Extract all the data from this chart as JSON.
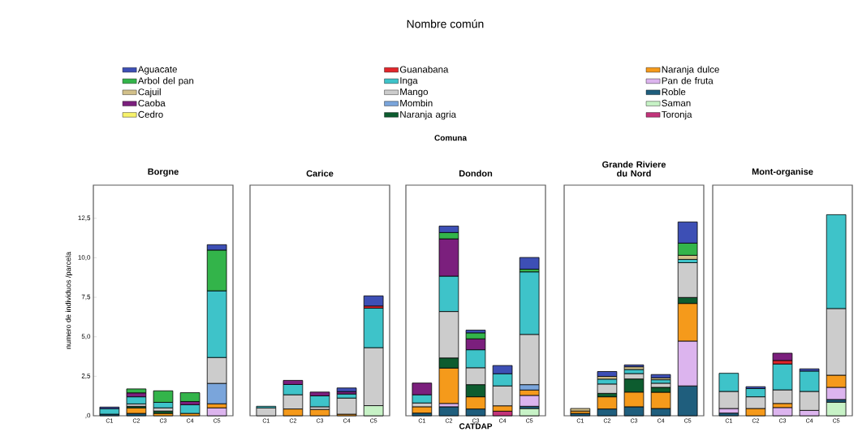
{
  "chart_data": [
    {
      "type": "bar",
      "stacked": true,
      "title": "Borgne",
      "legend_title": "Nombre común",
      "ylabel": "numero de individuos /parcela",
      "legend": "top",
      "categories": [
        "C1",
        "C2",
        "C3",
        "C4",
        "C5"
      ],
      "ylim": [
        0,
        14.6
      ],
      "yticks": [
        {
          "value": 0,
          "label": ",0"
        },
        {
          "value": 2.5,
          "label": "2,5"
        },
        {
          "value": 5,
          "label": "5,0"
        },
        {
          "value": 7.5,
          "label": "7,5"
        },
        {
          "value": 10,
          "label": "10,0"
        },
        {
          "value": 12.5,
          "label": "12,5"
        }
      ],
      "series": [
        {
          "name": "Toronja",
          "color": "#c2347a",
          "values": [
            null,
            null,
            null,
            null,
            null
          ]
        },
        {
          "name": "Saman",
          "color": "#c7f2c6",
          "values": [
            null,
            null,
            null,
            null,
            null
          ]
        },
        {
          "name": "Roble",
          "color": "#1f5e7d",
          "values": [
            0.1,
            0.15,
            null,
            null,
            null
          ]
        },
        {
          "name": "Pan de fruta",
          "color": "#dcb4ee",
          "values": [
            null,
            null,
            null,
            null,
            0.5
          ]
        },
        {
          "name": "Naranja dulce",
          "color": "#f59a1b",
          "values": [
            null,
            0.35,
            0.15,
            0.15,
            0.26
          ]
        },
        {
          "name": "Naranja agria",
          "color": "#0d5c2f",
          "values": [
            null,
            0.1,
            0.15,
            null,
            null
          ]
        },
        {
          "name": "Mombin",
          "color": "#7aa5db",
          "values": [
            null,
            null,
            null,
            null,
            1.29
          ]
        },
        {
          "name": "Mango",
          "color": "#cccccc",
          "values": [
            null,
            0.15,
            0.2,
            null,
            1.64
          ]
        },
        {
          "name": "Inga",
          "color": "#3ec3c9",
          "values": [
            0.35,
            0.45,
            0.35,
            0.55,
            4.22
          ]
        },
        {
          "name": "Guanabana",
          "color": "#e2262b",
          "values": [
            null,
            null,
            null,
            null,
            null
          ]
        },
        {
          "name": "Cedro",
          "color": "#f7f26b",
          "values": [
            null,
            null,
            null,
            null,
            null
          ]
        },
        {
          "name": "Caoba",
          "color": "#7b1f7d",
          "values": [
            null,
            0.25,
            null,
            0.2,
            null
          ]
        },
        {
          "name": "Cajuil",
          "color": "#d2c08a",
          "values": [
            null,
            null,
            null,
            null,
            null
          ]
        },
        {
          "name": "Arbol del pan",
          "color": "#33b44a",
          "values": [
            null,
            0.25,
            0.73,
            0.56,
            2.58
          ]
        },
        {
          "name": "Aguacate",
          "color": "#3d4fb5",
          "values": [
            0.1,
            null,
            null,
            null,
            0.34
          ]
        }
      ]
    },
    {
      "type": "bar",
      "stacked": true,
      "title": "Carice",
      "tick_labels": "x",
      "categories": [
        "C1",
        "C2",
        "C3",
        "C4",
        "C5"
      ],
      "ylim": [
        0,
        14.6
      ],
      "series": [
        {
          "color": "#c7f2c6",
          "values": [
            null,
            null,
            null,
            null,
            0.64
          ]
        },
        {
          "color": "#f59a1b",
          "values": [
            null,
            0.43,
            0.4,
            0.1,
            null
          ]
        },
        {
          "color": "#cccccc",
          "values": [
            0.5,
            0.9,
            0.17,
            1.02,
            3.67
          ]
        },
        {
          "color": "#3ec3c9",
          "values": [
            0.1,
            0.65,
            0.69,
            0.26,
            2.5
          ]
        },
        {
          "color": "#e2262b",
          "values": [
            null,
            null,
            null,
            null,
            0.14
          ]
        },
        {
          "color": "#7b1f7d",
          "values": [
            null,
            0.26,
            0.24,
            0.15,
            null
          ]
        },
        {
          "color": "#3d4fb5",
          "values": [
            null,
            null,
            null,
            0.23,
            0.64
          ]
        }
      ]
    },
    {
      "type": "bar",
      "stacked": true,
      "title": "Dondon",
      "tick_labels": "x",
      "xlabel": "CATDAP",
      "annotations": [
        "Comuna"
      ],
      "categories": [
        "C1",
        "C2",
        "C3",
        "C4",
        "C5"
      ],
      "ylim": [
        0,
        14.6
      ],
      "series": [
        {
          "color": "#c2347a",
          "values": [
            null,
            null,
            null,
            0.29,
            null
          ]
        },
        {
          "color": "#c7f2c6",
          "values": [
            null,
            null,
            null,
            null,
            0.46
          ]
        },
        {
          "color": "#1f5e7d",
          "values": [
            0.17,
            0.57,
            0.43,
            null,
            0.14
          ]
        },
        {
          "color": "#dcb4ee",
          "values": [
            null,
            0.21,
            null,
            null,
            0.69
          ]
        },
        {
          "color": "#f59a1b",
          "values": [
            0.4,
            2.24,
            0.77,
            0.34,
            0.34
          ]
        },
        {
          "color": "#0d5c2f",
          "values": [
            null,
            0.64,
            0.77,
            null,
            null
          ]
        },
        {
          "color": "#7aa5db",
          "values": [
            null,
            null,
            null,
            null,
            0.34
          ]
        },
        {
          "color": "#cccccc",
          "values": [
            0.24,
            2.94,
            1.07,
            1.26,
            3.18
          ]
        },
        {
          "color": "#3ec3c9",
          "values": [
            0.52,
            2.24,
            1.14,
            0.77,
            3.96
          ]
        },
        {
          "color": "#7b1f7d",
          "values": [
            0.74,
            2.36,
            0.69,
            null,
            null
          ]
        },
        {
          "color": "#33b44a",
          "values": [
            null,
            0.4,
            0.38,
            null,
            0.17
          ]
        },
        {
          "color": "#3d4fb5",
          "values": [
            null,
            0.41,
            0.17,
            0.52,
            0.74
          ]
        }
      ]
    },
    {
      "type": "bar",
      "stacked": true,
      "title": "Grande Riviere du Nord",
      "tick_labels": "x",
      "categories": [
        "C1",
        "C2",
        "C3",
        "C4",
        "C5"
      ],
      "ylim": [
        0,
        14.6
      ],
      "series": [
        {
          "color": "#1f5e7d",
          "values": [
            0.15,
            0.43,
            0.57,
            0.46,
            1.89
          ]
        },
        {
          "color": "#dcb4ee",
          "values": [
            null,
            null,
            null,
            null,
            2.84
          ]
        },
        {
          "color": "#f59a1b",
          "values": [
            0.15,
            0.77,
            0.93,
            1.03,
            2.38
          ]
        },
        {
          "color": "#0d5c2f",
          "values": [
            null,
            0.22,
            0.83,
            0.31,
            0.38
          ]
        },
        {
          "color": "#cccccc",
          "values": [
            null,
            0.59,
            0.34,
            0.26,
            2.2
          ]
        },
        {
          "color": "#3ec3c9",
          "values": [
            null,
            0.31,
            0.26,
            0.22,
            0.21
          ]
        },
        {
          "color": "#d2c08a",
          "values": [
            0.16,
            0.17,
            0.17,
            0.12,
            0.26
          ]
        },
        {
          "color": "#33b44a",
          "values": [
            null,
            null,
            null,
            null,
            0.77
          ]
        },
        {
          "color": "#3d4fb5",
          "values": [
            null,
            0.31,
            0.12,
            0.21,
            1.34
          ]
        }
      ]
    },
    {
      "type": "bar",
      "stacked": true,
      "title": "Mont-organise",
      "tick_labels": "x",
      "categories": [
        "C1",
        "C2",
        "C3",
        "C4",
        "C5"
      ],
      "ylim": [
        0,
        14.6
      ],
      "series": [
        {
          "color": "#c7f2c6",
          "values": [
            null,
            null,
            null,
            null,
            0.86
          ]
        },
        {
          "color": "#1f5e7d",
          "values": [
            0.17,
            null,
            null,
            null,
            0.17
          ]
        },
        {
          "color": "#dcb4ee",
          "values": [
            0.29,
            null,
            0.52,
            0.34,
            0.77
          ]
        },
        {
          "color": "#f59a1b",
          "values": [
            null,
            0.46,
            0.26,
            null,
            0.77
          ]
        },
        {
          "color": "#cccccc",
          "values": [
            1.08,
            0.74,
            0.86,
            1.2,
            4.22
          ]
        },
        {
          "color": "#3ec3c9",
          "values": [
            1.15,
            0.52,
            1.64,
            1.29,
            5.94
          ]
        },
        {
          "color": "#e2262b",
          "values": [
            null,
            null,
            0.22,
            null,
            null
          ]
        },
        {
          "color": "#7b1f7d",
          "values": [
            null,
            null,
            0.46,
            null,
            null
          ]
        },
        {
          "color": "#3d4fb5",
          "values": [
            null,
            0.12,
            null,
            0.14,
            null
          ]
        }
      ]
    }
  ]
}
